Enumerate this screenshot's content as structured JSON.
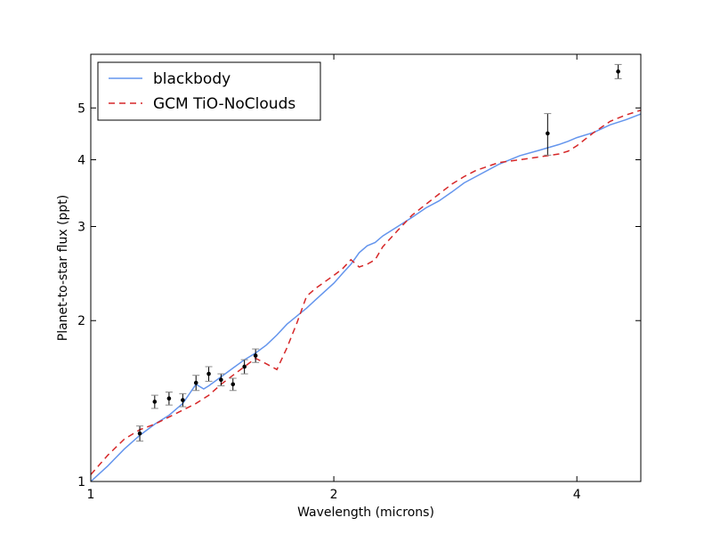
{
  "chart_data": {
    "type": "line",
    "xlabel": "Wavelength (microns)",
    "ylabel": "Planet-to-star flux (ppt)",
    "xscale": "log",
    "yscale": "log",
    "xlim": [
      1.0,
      4.8
    ],
    "ylim": [
      1.0,
      6.3
    ],
    "xticks": [
      {
        "value": 1,
        "label": "1"
      },
      {
        "value": 2,
        "label": "2"
      },
      {
        "value": 4,
        "label": "4"
      }
    ],
    "yticks": [
      {
        "value": 1,
        "label": "1"
      },
      {
        "value": 2,
        "label": "2"
      },
      {
        "value": 3,
        "label": "3"
      },
      {
        "value": 4,
        "label": "4"
      },
      {
        "value": 5,
        "label": "5"
      }
    ],
    "grid": false,
    "legend": {
      "placement": "top-left"
    },
    "series": [
      {
        "name": "blackbody",
        "style": "solid",
        "color": "#6495ed",
        "x": [
          1.0,
          1.05,
          1.1,
          1.15,
          1.2,
          1.25,
          1.3,
          1.35,
          1.38,
          1.4,
          1.45,
          1.5,
          1.55,
          1.6,
          1.65,
          1.7,
          1.75,
          1.8,
          1.85,
          1.9,
          2.0,
          2.05,
          2.1,
          2.15,
          2.2,
          2.25,
          2.3,
          2.4,
          2.5,
          2.6,
          2.7,
          2.8,
          2.9,
          3.0,
          3.2,
          3.4,
          3.6,
          3.8,
          3.9,
          4.0,
          4.2,
          4.4,
          4.6,
          4.8
        ],
        "y": [
          1.0,
          1.07,
          1.15,
          1.22,
          1.28,
          1.33,
          1.4,
          1.52,
          1.49,
          1.51,
          1.57,
          1.63,
          1.69,
          1.74,
          1.8,
          1.88,
          1.97,
          2.04,
          2.11,
          2.19,
          2.35,
          2.45,
          2.55,
          2.68,
          2.76,
          2.8,
          2.88,
          3.0,
          3.12,
          3.25,
          3.35,
          3.48,
          3.62,
          3.72,
          3.92,
          4.07,
          4.17,
          4.27,
          4.33,
          4.4,
          4.5,
          4.65,
          4.75,
          4.87
        ]
      },
      {
        "name": "GCM TiO-NoClouds",
        "style": "dashed",
        "color": "#d62728",
        "x": [
          1.0,
          1.05,
          1.1,
          1.15,
          1.2,
          1.25,
          1.3,
          1.35,
          1.4,
          1.45,
          1.5,
          1.55,
          1.6,
          1.65,
          1.7,
          1.75,
          1.8,
          1.85,
          1.9,
          2.0,
          2.05,
          2.1,
          2.15,
          2.2,
          2.25,
          2.3,
          2.4,
          2.5,
          2.6,
          2.7,
          2.8,
          2.9,
          3.0,
          3.2,
          3.4,
          3.6,
          3.8,
          3.9,
          4.0,
          4.2,
          4.4,
          4.6,
          4.8
        ],
        "y": [
          1.03,
          1.12,
          1.2,
          1.25,
          1.28,
          1.32,
          1.36,
          1.4,
          1.45,
          1.52,
          1.58,
          1.64,
          1.7,
          1.66,
          1.62,
          1.78,
          1.98,
          2.22,
          2.3,
          2.43,
          2.5,
          2.6,
          2.52,
          2.55,
          2.6,
          2.75,
          2.95,
          3.15,
          3.3,
          3.45,
          3.6,
          3.72,
          3.82,
          3.95,
          4.0,
          4.05,
          4.1,
          4.15,
          4.25,
          4.5,
          4.72,
          4.85,
          4.95
        ]
      }
    ],
    "observations": {
      "name": "data",
      "color": "#000000",
      "points": [
        {
          "x": 1.15,
          "y": 1.23,
          "err": 0.04
        },
        {
          "x": 1.2,
          "y": 1.41,
          "err": 0.04
        },
        {
          "x": 1.25,
          "y": 1.43,
          "err": 0.04
        },
        {
          "x": 1.3,
          "y": 1.42,
          "err": 0.04
        },
        {
          "x": 1.35,
          "y": 1.53,
          "err": 0.05
        },
        {
          "x": 1.4,
          "y": 1.59,
          "err": 0.05
        },
        {
          "x": 1.45,
          "y": 1.55,
          "err": 0.04
        },
        {
          "x": 1.5,
          "y": 1.52,
          "err": 0.04
        },
        {
          "x": 1.55,
          "y": 1.64,
          "err": 0.05
        },
        {
          "x": 1.6,
          "y": 1.72,
          "err": 0.05
        },
        {
          "x": 3.68,
          "y": 4.48,
          "err": 0.4
        },
        {
          "x": 4.5,
          "y": 5.85,
          "err": 0.18
        }
      ]
    }
  }
}
